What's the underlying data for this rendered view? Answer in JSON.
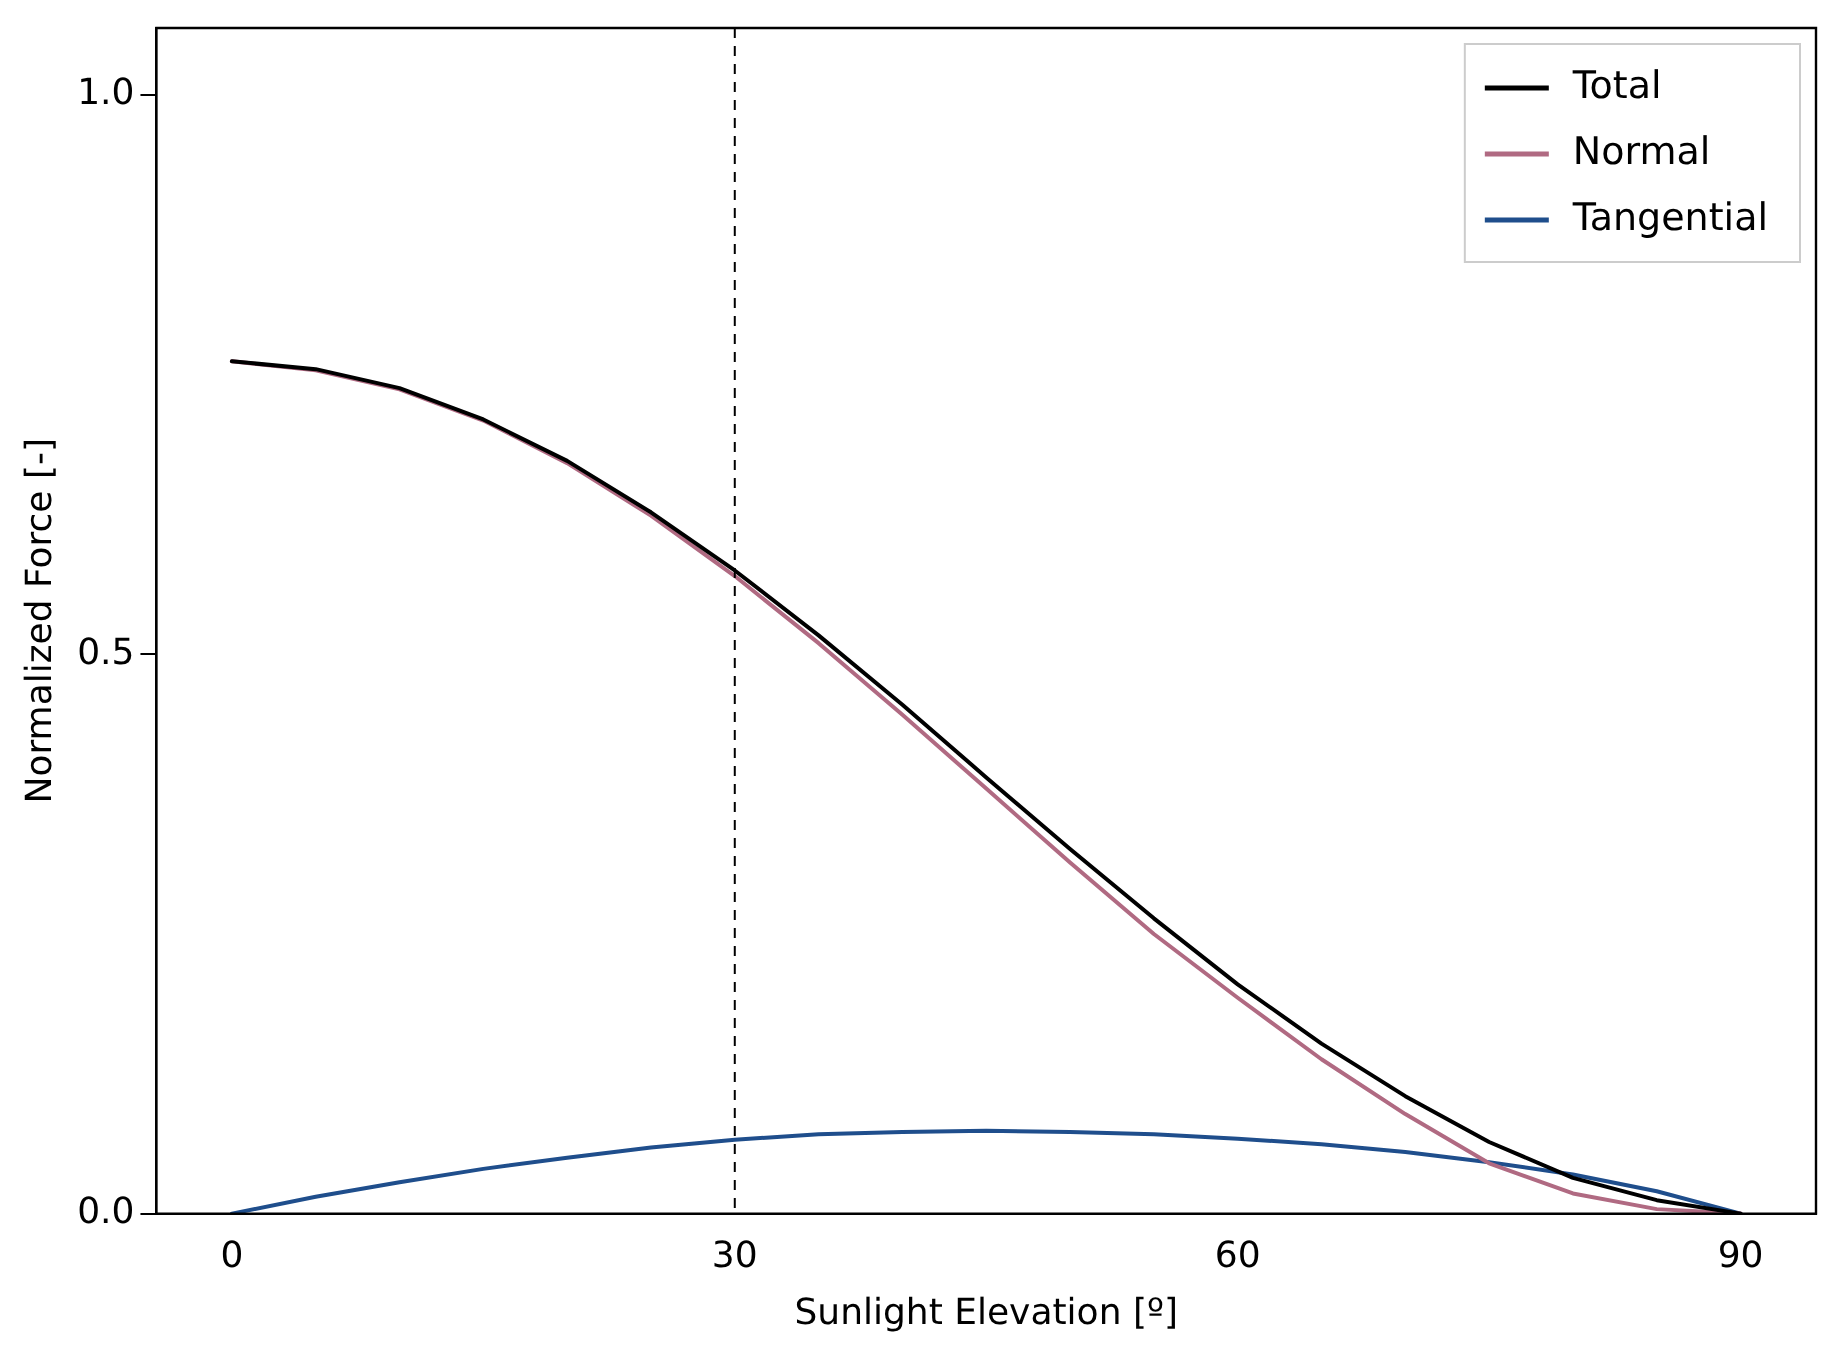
{
  "chart_data": {
    "type": "line",
    "xlabel": "Sunlight Elevation [º]",
    "ylabel": "Normalized Force [-]",
    "x": [
      0,
      5,
      10,
      15,
      20,
      25,
      30,
      35,
      40,
      45,
      50,
      55,
      60,
      65,
      70,
      75,
      80,
      85,
      90
    ],
    "series": [
      {
        "name": "Total",
        "color": "#000000",
        "values": [
          0.762,
          0.755,
          0.738,
          0.71,
          0.673,
          0.627,
          0.575,
          0.517,
          0.455,
          0.39,
          0.326,
          0.264,
          0.205,
          0.152,
          0.105,
          0.064,
          0.032,
          0.012,
          0
        ]
      },
      {
        "name": "Normal",
        "color": "#b06a82",
        "values": [
          0.762,
          0.754,
          0.737,
          0.709,
          0.671,
          0.624,
          0.57,
          0.51,
          0.446,
          0.38,
          0.314,
          0.25,
          0.193,
          0.138,
          0.089,
          0.045,
          0.018,
          0.004,
          0
        ]
      },
      {
        "name": "Tangential",
        "color": "#1f4e8c",
        "values": [
          0,
          0.015,
          0.028,
          0.04,
          0.05,
          0.059,
          0.066,
          0.071,
          0.073,
          0.074,
          0.073,
          0.071,
          0.067,
          0.062,
          0.055,
          0.046,
          0.035,
          0.02,
          0
        ]
      }
    ],
    "xlim": [
      -4.5,
      94.5
    ],
    "xticks": [
      0,
      30,
      60,
      90
    ],
    "ylim": [
      0,
      1.06
    ],
    "yticks": [
      {
        "value": 0,
        "label": "0.0"
      },
      {
        "value": 0.5,
        "label": "0.5"
      },
      {
        "value": 1,
        "label": "1.0"
      }
    ],
    "ref_lines": [
      {
        "axis": "x",
        "value": 30,
        "color": "#000000",
        "line_style": "dashed"
      }
    ],
    "legend": "top right",
    "grid": false,
    "marker": "none",
    "line_style": "solid"
  }
}
